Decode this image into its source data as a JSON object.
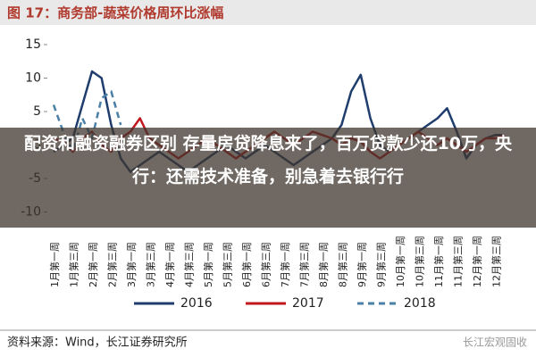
{
  "chart_data": {
    "type": "line",
    "title": "图 17：商务部-蔬菜价格周环比涨幅",
    "categories": [
      "1月第一周",
      null,
      "1月第三周",
      null,
      "2月第一周",
      null,
      "2月第三周",
      null,
      "3月第一周",
      null,
      "3月第三周",
      null,
      "4月第一周",
      null,
      "4月第三周",
      null,
      "5月第一周",
      null,
      "5月第三周",
      null,
      "6月第一周",
      null,
      "6月第三周",
      null,
      "7月第一周",
      null,
      "7月第三周",
      null,
      "8月第一周",
      null,
      "8月第三周",
      null,
      "9月第一周",
      null,
      "9月第三周",
      null,
      "10月第一周",
      null,
      "10月第三周",
      null,
      "11月第一周",
      null,
      "11月第三周",
      null,
      "12月第一周",
      null,
      "12月第三周",
      null
    ],
    "series": [
      {
        "name": "2016",
        "color": "#1f3e6e",
        "dash": false,
        "values": [
          -1,
          0,
          1,
          6,
          11,
          10,
          3,
          -2,
          -4,
          -3,
          -2,
          -1,
          -2,
          -3,
          -4,
          -3,
          -2,
          -1,
          0,
          -1,
          -2,
          -1,
          0,
          -1,
          -2,
          -3,
          -2,
          -1,
          0,
          1,
          3,
          8,
          10.5,
          4,
          0,
          -1,
          0,
          1,
          2,
          3,
          4,
          5.5,
          2,
          -2,
          0,
          1,
          1.5,
          1.5
        ]
      },
      {
        "name": "2017",
        "color": "#c0181e",
        "dash": false,
        "values": [
          1,
          0.5,
          -1,
          1,
          2,
          0,
          -1,
          1,
          2,
          4,
          1,
          0,
          -1,
          -2,
          -1,
          0,
          1,
          0,
          -1,
          -2,
          -1,
          0,
          1,
          2,
          1,
          0,
          1,
          2,
          1.5,
          1,
          0,
          1,
          0.5,
          -1,
          -2,
          -1,
          0,
          1,
          2,
          1,
          0,
          1,
          0,
          -1,
          0,
          1,
          1,
          1.5
        ]
      },
      {
        "name": "2018",
        "color": "#4a7fa6",
        "dash": true,
        "values": [
          6,
          2,
          -1,
          4,
          1,
          7,
          8,
          3,
          null,
          null,
          null,
          null,
          null,
          null,
          null,
          null,
          null,
          null,
          null,
          null,
          null,
          null,
          null,
          null,
          null,
          null,
          null,
          null,
          null,
          null,
          null,
          null,
          null,
          null,
          null,
          null,
          null,
          null,
          null,
          null,
          null,
          null,
          null,
          null,
          null,
          null,
          null,
          null
        ]
      }
    ],
    "ylim": [
      -10,
      15
    ],
    "yticks": [
      15,
      10,
      5,
      0,
      -5,
      -10
    ],
    "source": "资料来源：Wind，长江证券研究所",
    "watermark": "长江宏观固收"
  },
  "overlay_text": "配资和融资融券区别 存量房贷降息来了，百万贷款少还10万，央行：还需技术准备，别急着去银行行"
}
